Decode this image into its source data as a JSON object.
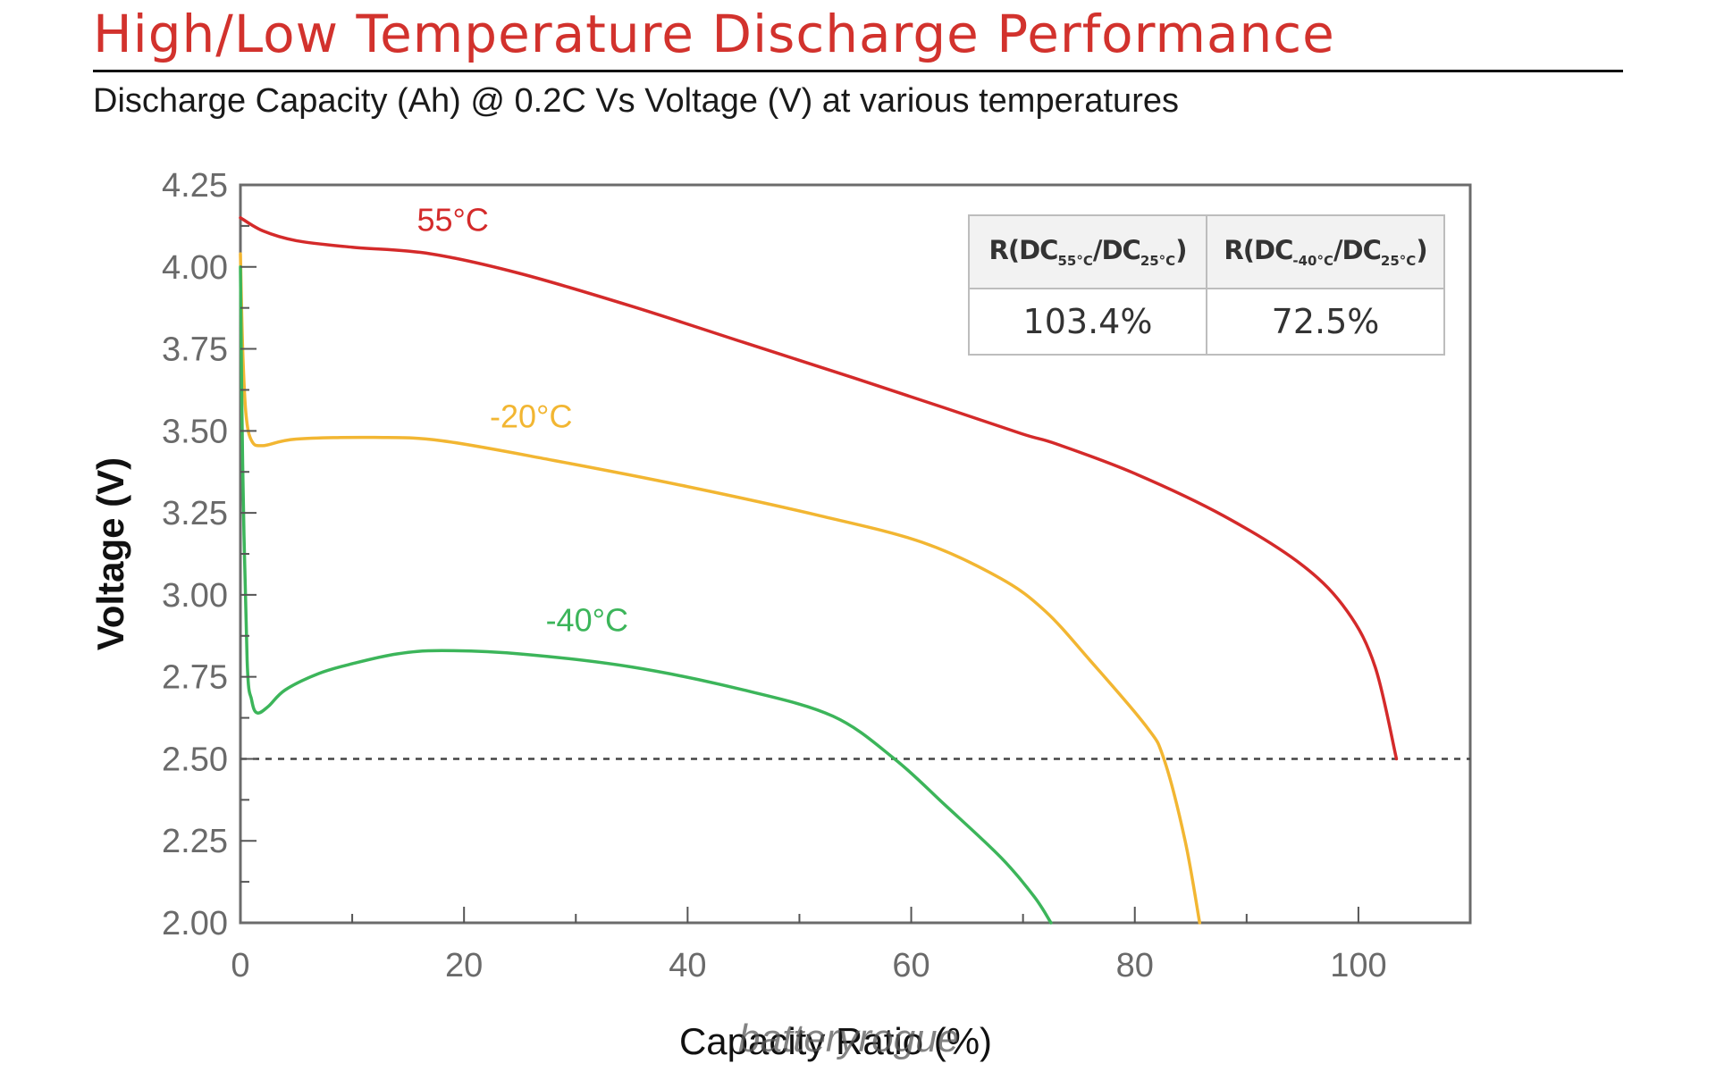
{
  "header": {
    "title": "High/Low Temperature Discharge Performance",
    "subtitle": "Discharge Capacity (Ah) @ 0.2C Vs Voltage (V) at various temperatures"
  },
  "ratio_table": {
    "headers": [
      {
        "prefix": "R(DC",
        "sub1": "55°C",
        "mid": "/DC",
        "sub2": "25°C",
        "suffix": ")"
      },
      {
        "prefix": "R(DC",
        "sub1": "-40°C",
        "mid": "/DC",
        "sub2": "25°C",
        "suffix": ")"
      }
    ],
    "values": [
      "103.4%",
      "72.5%"
    ]
  },
  "watermark": "batteryrogue",
  "chart_data": {
    "type": "line",
    "title": "High/Low Temperature Discharge Performance",
    "subtitle": "Discharge Capacity (Ah) @ 0.2C Vs Voltage (V) at various temperatures",
    "xlabel": "Capacity Ratio (%)",
    "ylabel": "Voltage (V)",
    "xlim": [
      0,
      110
    ],
    "ylim": [
      2.0,
      4.25
    ],
    "x_ticks": [
      0,
      20,
      40,
      60,
      80,
      100
    ],
    "x_tick_labels": [
      "0",
      "20",
      "40",
      "60",
      "80",
      "100"
    ],
    "x_minor_ticks": [
      10,
      30,
      50,
      70,
      90
    ],
    "y_ticks": [
      2.0,
      2.25,
      2.5,
      2.75,
      3.0,
      3.25,
      3.5,
      3.75,
      4.0,
      4.25
    ],
    "y_tick_labels": [
      "2.00",
      "2.25",
      "2.50",
      "2.75",
      "3.00",
      "3.25",
      "3.50",
      "3.75",
      "4.00",
      "4.25"
    ],
    "grid": false,
    "legend": "inline-labels",
    "reference_line": {
      "y": 2.5,
      "style": "dashed",
      "color": "#444444"
    },
    "series": [
      {
        "name": "55°C",
        "color": "#d42a2a",
        "label_at": [
          19,
          4.11
        ],
        "x": [
          0,
          2,
          5,
          10,
          17,
          25,
          35,
          45,
          55,
          63,
          70,
          73,
          80,
          88,
          95,
          99,
          101.5,
          103.4
        ],
        "y": [
          4.15,
          4.11,
          4.08,
          4.06,
          4.04,
          3.98,
          3.88,
          3.77,
          3.66,
          3.57,
          3.49,
          3.46,
          3.37,
          3.24,
          3.09,
          2.95,
          2.78,
          2.5
        ]
      },
      {
        "name": "-20°C",
        "color": "#f2b632",
        "label_at": [
          26,
          3.51
        ],
        "x": [
          0,
          0.2,
          0.5,
          1,
          2,
          5,
          12,
          18,
          28,
          40,
          52,
          61,
          68,
          72,
          76,
          81,
          82.6,
          84.5,
          85.8
        ],
        "y": [
          4.04,
          3.75,
          3.55,
          3.47,
          3.455,
          3.475,
          3.48,
          3.47,
          3.41,
          3.33,
          3.24,
          3.16,
          3.05,
          2.95,
          2.8,
          2.6,
          2.5,
          2.25,
          2.0
        ]
      },
      {
        "name": "-40°C",
        "color": "#3cb55a",
        "label_at": [
          31,
          2.89
        ],
        "x": [
          0,
          0.2,
          0.6,
          1,
          1.5,
          2.5,
          4,
          7,
          10,
          14,
          18,
          25,
          35,
          45,
          53,
          58.5,
          63,
          68,
          71,
          72.5
        ],
        "y": [
          4.0,
          3.4,
          2.8,
          2.68,
          2.64,
          2.66,
          2.71,
          2.76,
          2.79,
          2.82,
          2.83,
          2.82,
          2.78,
          2.71,
          2.63,
          2.5,
          2.36,
          2.2,
          2.08,
          2.0
        ]
      }
    ]
  }
}
